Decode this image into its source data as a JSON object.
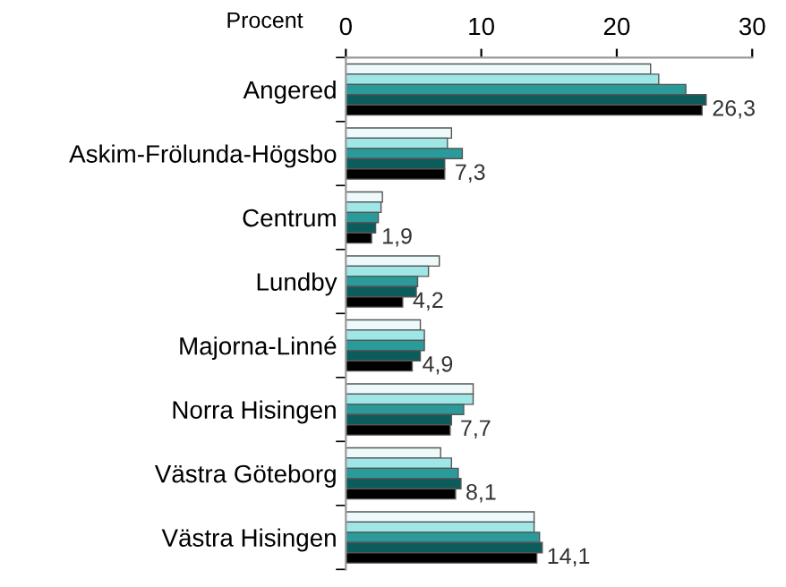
{
  "chart_data": {
    "type": "bar",
    "orientation": "horizontal",
    "xlabel": "Procent",
    "categories": [
      "Angered",
      "Askim-Frölunda-Högsbo",
      "Centrum",
      "Lundby",
      "Majorna-Linné",
      "Norra Hisingen",
      "Västra Göteborg",
      "Västra Hisingen"
    ],
    "series": [
      {
        "color": "#eefafa",
        "values": [
          22.5,
          7.8,
          2.7,
          6.9,
          5.5,
          9.4,
          7.0,
          13.9
        ]
      },
      {
        "color": "#9fe6e6",
        "values": [
          23.1,
          7.5,
          2.6,
          6.1,
          5.8,
          9.4,
          7.8,
          13.9
        ]
      },
      {
        "color": "#2a9a9a",
        "values": [
          25.1,
          8.6,
          2.4,
          5.3,
          5.8,
          8.7,
          8.3,
          14.3
        ]
      },
      {
        "color": "#0d5c5c",
        "values": [
          26.6,
          7.3,
          2.2,
          5.2,
          5.5,
          7.8,
          8.5,
          14.5
        ]
      },
      {
        "color": "#000000",
        "values": [
          26.3,
          7.3,
          1.9,
          4.2,
          4.9,
          7.7,
          8.1,
          14.1
        ],
        "value_labels": [
          "26,3",
          "7,3",
          "1,9",
          "4,2",
          "4,9",
          "7,7",
          "8,1",
          "14,1"
        ]
      }
    ],
    "xlim": [
      0,
      30
    ],
    "xticks": [
      0,
      10,
      20,
      30
    ],
    "grid": false,
    "legend": false
  }
}
